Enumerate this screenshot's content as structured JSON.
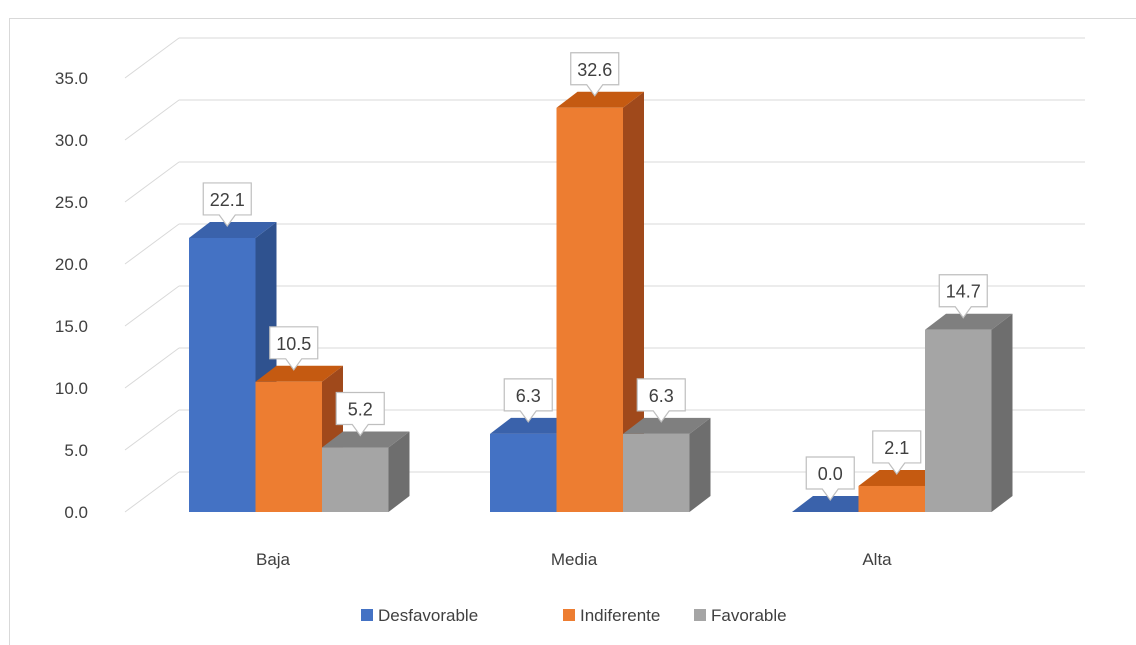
{
  "chart_data": {
    "type": "bar",
    "style": "3d-clustered-column",
    "categories": [
      "Baja",
      "Media",
      "Alta"
    ],
    "series": [
      {
        "name": "Desfavorable",
        "values": [
          22.1,
          6.3,
          0.0
        ],
        "color": "#4472c4",
        "side_color": "#2f528f",
        "top_color": "#3a62ab"
      },
      {
        "name": "Indiferente",
        "values": [
          10.5,
          32.6,
          2.1
        ],
        "color": "#ed7d31",
        "side_color": "#a0491b",
        "top_color": "#c55a11"
      },
      {
        "name": "Favorable",
        "values": [
          5.2,
          6.3,
          14.7
        ],
        "color": "#a5a5a5",
        "side_color": "#6e6e6e",
        "top_color": "#7f7f7f"
      }
    ],
    "ylim": [
      0,
      35
    ],
    "y_ticks": [
      "0.0",
      "5.0",
      "10.0",
      "15.0",
      "20.0",
      "25.0",
      "30.0",
      "35.0"
    ],
    "grid": true,
    "data_labels": true,
    "legend_position": "bottom",
    "title": "",
    "xlabel": "",
    "ylabel": ""
  }
}
